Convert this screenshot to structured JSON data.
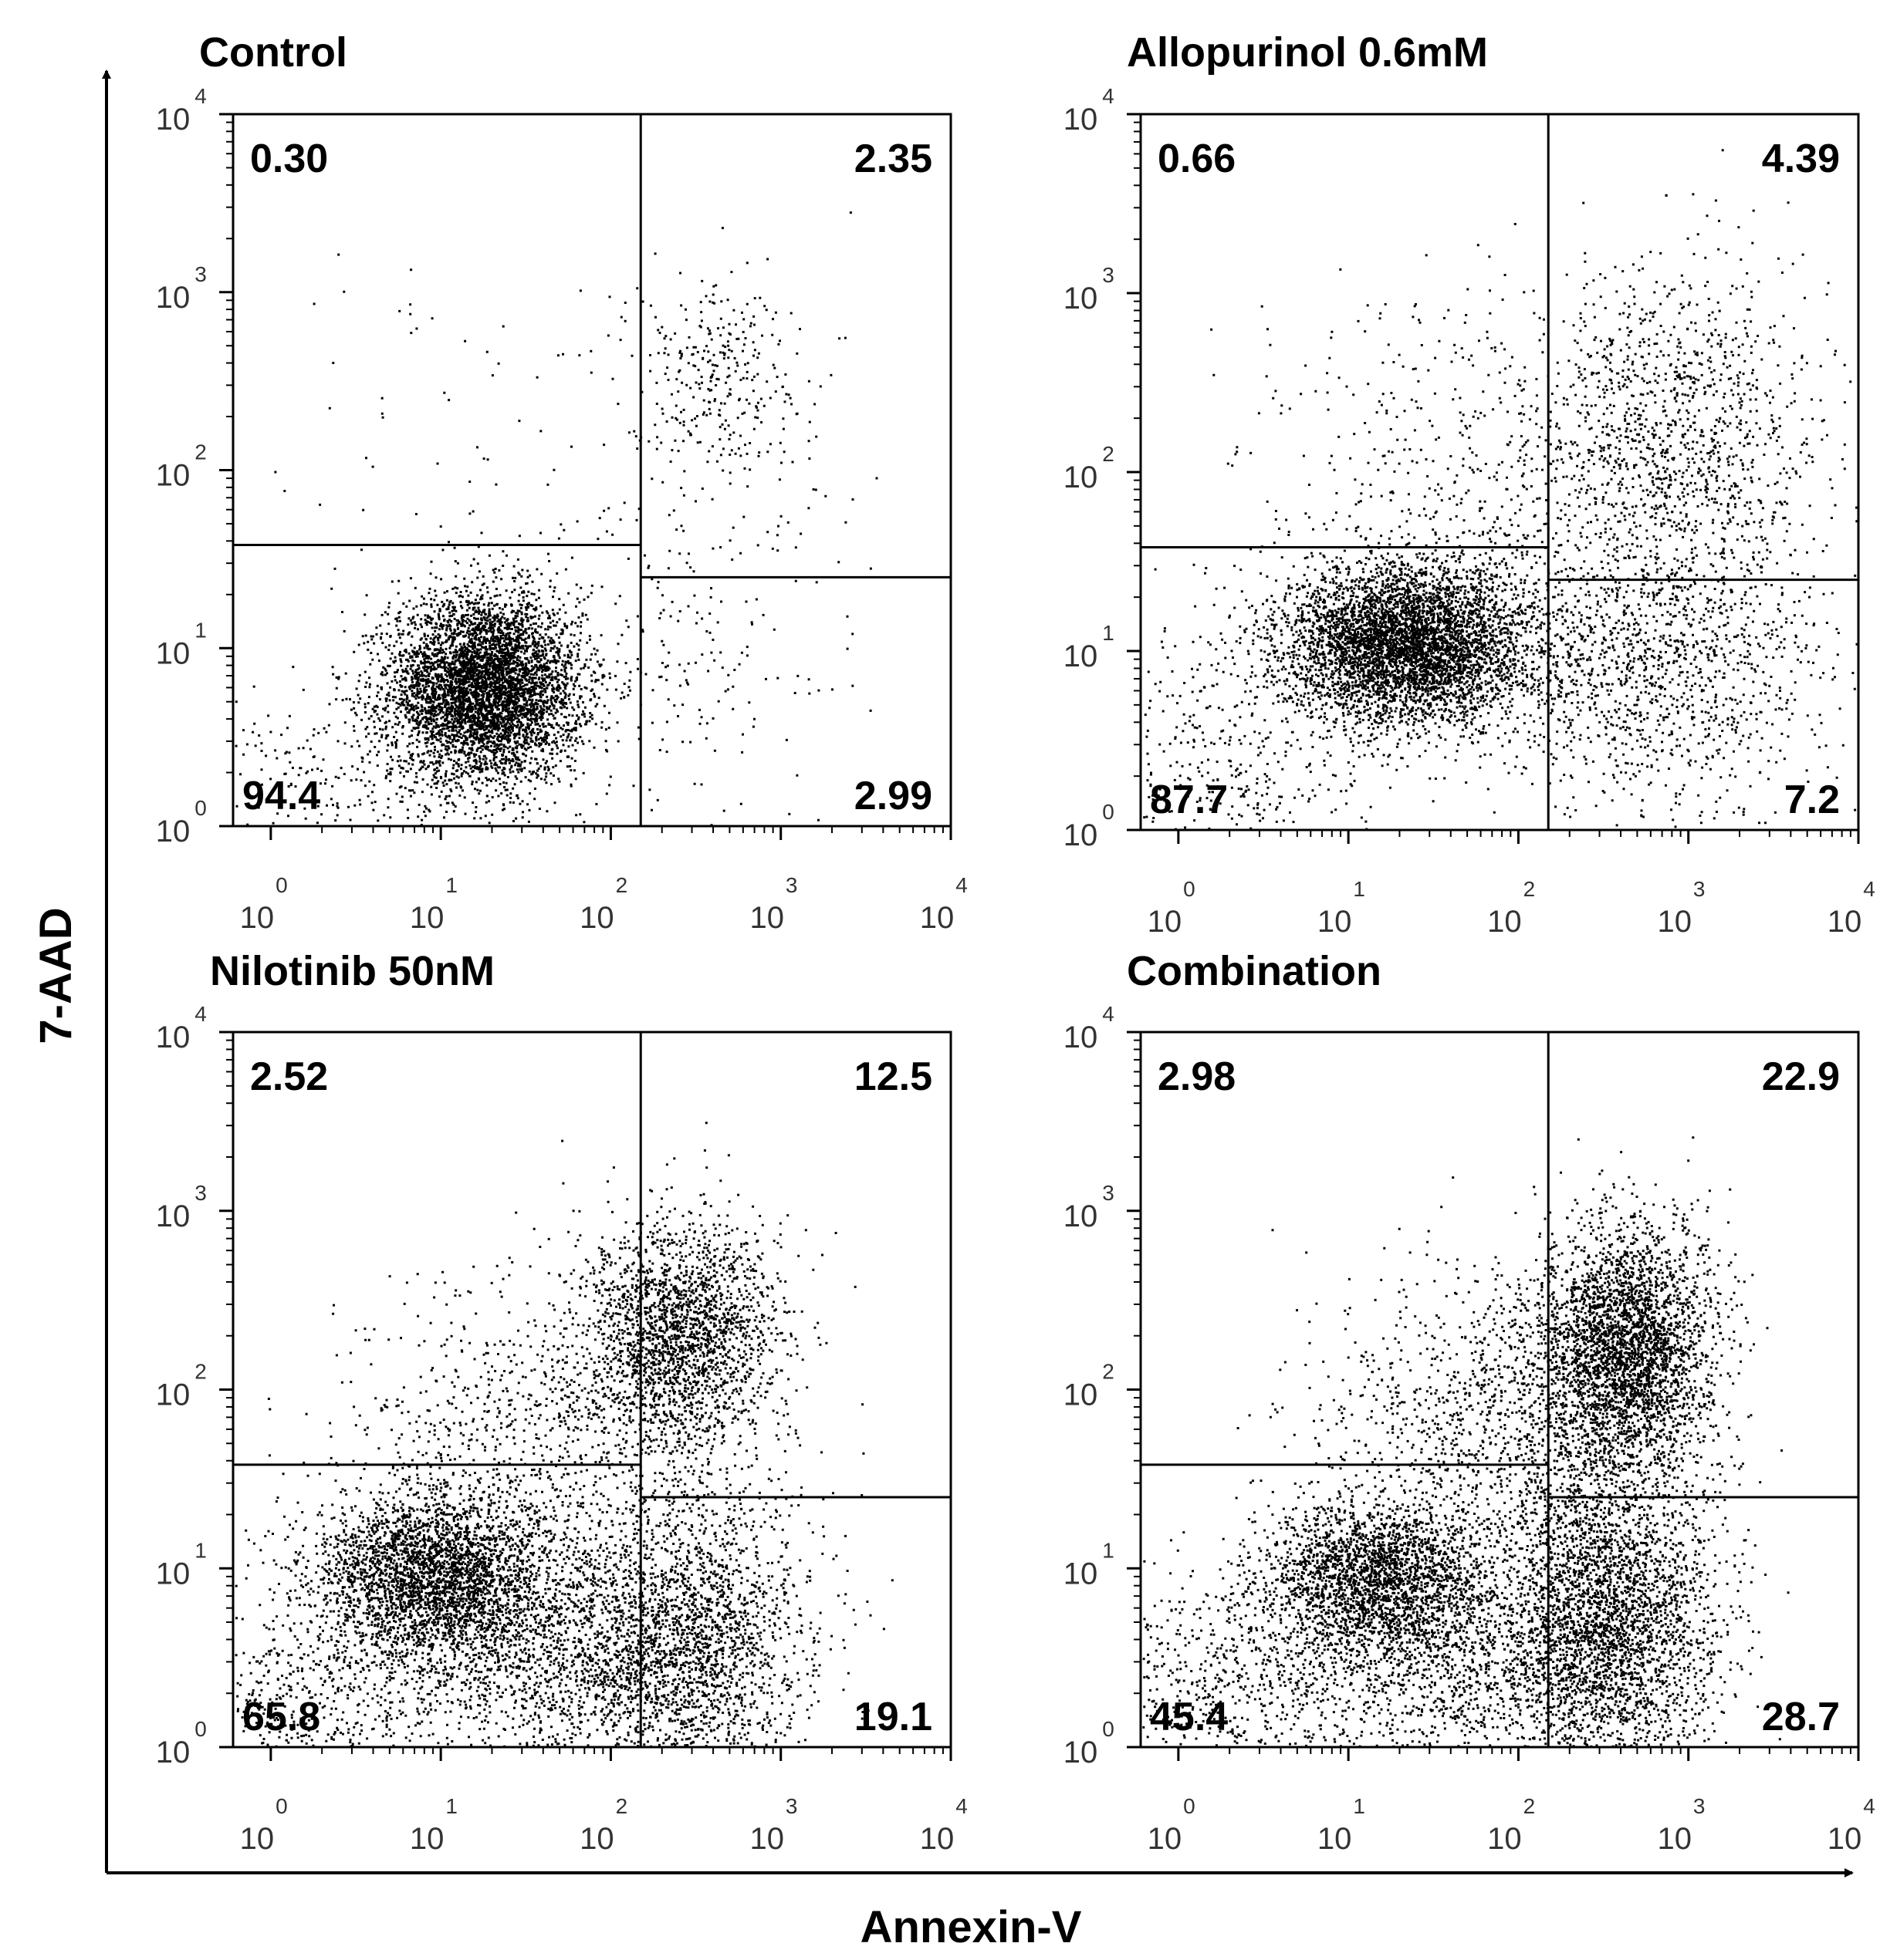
{
  "figure": {
    "x_axis_label": "Annexin-V",
    "y_axis_label": "7-AAD"
  },
  "colors": {
    "ink": "#000000",
    "background": "#ffffff"
  },
  "chart_data": [
    {
      "type": "scatter",
      "title": "Control",
      "xlabel": "Annexin-V",
      "ylabel": "7-AAD",
      "xscale": "log",
      "yscale": "log",
      "xlim": [
        0.6,
        10000
      ],
      "ylim": [
        1,
        10000
      ],
      "x_ticks": [
        "10^0",
        "10^1",
        "10^2",
        "10^3",
        "10^4"
      ],
      "y_ticks": [
        "10^0",
        "10^1",
        "10^2",
        "10^3",
        "10^4"
      ],
      "gates": {
        "x_threshold": 150,
        "y_threshold_left": 38,
        "y_threshold_right": 25
      },
      "quadrants": {
        "upper_left": "0.30",
        "upper_right": "2.35",
        "lower_left": "94.4",
        "lower_right": "2.99"
      }
    },
    {
      "type": "scatter",
      "title": "Allopurinol 0.6mM",
      "xlabel": "Annexin-V",
      "ylabel": "7-AAD",
      "xscale": "log",
      "yscale": "log",
      "xlim": [
        0.6,
        10000
      ],
      "ylim": [
        1,
        10000
      ],
      "x_ticks": [
        "10^0",
        "10^1",
        "10^2",
        "10^3",
        "10^4"
      ],
      "y_ticks": [
        "10^0",
        "10^1",
        "10^2",
        "10^3",
        "10^4"
      ],
      "gates": {
        "x_threshold": 150,
        "y_threshold_left": 38,
        "y_threshold_right": 25
      },
      "quadrants": {
        "upper_left": "0.66",
        "upper_right": "4.39",
        "lower_left": "87.7",
        "lower_right": "7.2"
      }
    },
    {
      "type": "scatter",
      "title": "Nilotinib 50nM",
      "xlabel": "Annexin-V",
      "ylabel": "7-AAD",
      "xscale": "log",
      "yscale": "log",
      "xlim": [
        0.6,
        10000
      ],
      "ylim": [
        1,
        10000
      ],
      "x_ticks": [
        "10^0",
        "10^1",
        "10^2",
        "10^3",
        "10^4"
      ],
      "y_ticks": [
        "10^0",
        "10^1",
        "10^2",
        "10^3",
        "10^4"
      ],
      "gates": {
        "x_threshold": 150,
        "y_threshold_left": 38,
        "y_threshold_right": 25
      },
      "quadrants": {
        "upper_left": "2.52",
        "upper_right": "12.5",
        "lower_left": "65.8",
        "lower_right": "19.1"
      }
    },
    {
      "type": "scatter",
      "title": "Combination",
      "xlabel": "Annexin-V",
      "ylabel": "7-AAD",
      "xscale": "log",
      "yscale": "log",
      "xlim": [
        0.6,
        10000
      ],
      "ylim": [
        1,
        10000
      ],
      "x_ticks": [
        "10^0",
        "10^1",
        "10^2",
        "10^3",
        "10^4"
      ],
      "y_ticks": [
        "10^0",
        "10^1",
        "10^2",
        "10^3",
        "10^4"
      ],
      "gates": {
        "x_threshold": 150,
        "y_threshold_left": 38,
        "y_threshold_right": 25
      },
      "quadrants": {
        "upper_left": "2.98",
        "upper_right": "22.9",
        "lower_left": "45.4",
        "lower_right": "28.7"
      }
    }
  ]
}
